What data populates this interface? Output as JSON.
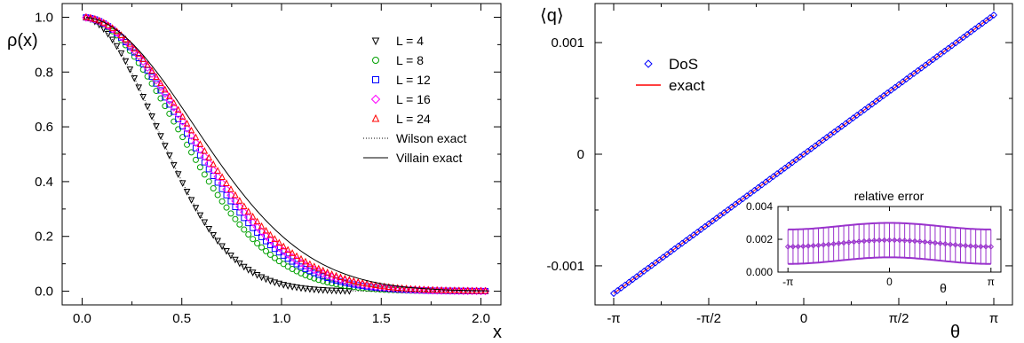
{
  "chart_data": [
    {
      "type": "scatter",
      "ylabel": "ρ(x)",
      "xlabel": "x",
      "xlim": [
        -0.1,
        2.1
      ],
      "ylim": [
        -0.05,
        1.05
      ],
      "xticks": [
        0.0,
        0.5,
        1.0,
        1.5,
        2.0
      ],
      "xtick_labels": [
        "0.0",
        "0.5",
        "1.0",
        "1.5",
        "2.0"
      ],
      "yticks": [
        0.0,
        0.2,
        0.4,
        0.6,
        0.8,
        1.0
      ],
      "ytick_labels": [
        "0.0",
        "0.2",
        "0.4",
        "0.6",
        "0.8",
        "1.0"
      ],
      "legend_position": "top-right",
      "series": [
        {
          "name": "L = 4",
          "marker": "triangle-down",
          "color": "#000000",
          "x_range": [
            0.02,
            1.36
          ],
          "sigma": 0.37
        },
        {
          "name": "L = 8",
          "marker": "circle",
          "color": "#00a000",
          "x_range": [
            0.02,
            2.04
          ],
          "sigma": 0.47
        },
        {
          "name": "L = 12",
          "marker": "square",
          "color": "#0000ff",
          "x_range": [
            0.02,
            2.04
          ],
          "sigma": 0.5
        },
        {
          "name": "L = 16",
          "marker": "diamond",
          "color": "#ff00ff",
          "x_range": [
            0.02,
            2.04
          ],
          "sigma": 0.515
        },
        {
          "name": "L = 24",
          "marker": "triangle-up",
          "color": "#ff0000",
          "x_range": [
            0.02,
            2.04
          ],
          "sigma": 0.53
        },
        {
          "name": "Wilson exact",
          "line": "dotted",
          "color": "#000000",
          "x_range": [
            0.02,
            2.04
          ],
          "sigma": 0.37
        },
        {
          "name": "Villain exact",
          "line": "solid",
          "color": "#000000",
          "x_range": [
            0.02,
            2.04
          ],
          "sigma": 0.56
        }
      ]
    },
    {
      "type": "scatter",
      "ylabel": "⟨q⟩",
      "xlabel": "θ",
      "xlim": [
        -3.45,
        3.45
      ],
      "ylim": [
        -0.00135,
        0.00135
      ],
      "xticks": [
        -3.14159,
        -1.5708,
        0,
        1.5708,
        3.14159
      ],
      "xtick_labels": [
        "-π",
        "-π/2",
        "0",
        "π/2",
        "π"
      ],
      "yticks": [
        -0.001,
        0,
        0.001
      ],
      "ytick_labels": [
        "-0.001",
        "0",
        "0.001"
      ],
      "legend_position": "top-left",
      "series": [
        {
          "name": "DoS",
          "marker": "diamond",
          "color": "#0000ff",
          "x_range": [
            -3.14159,
            3.14159
          ],
          "slope": 0.000397
        },
        {
          "name": "exact",
          "line": "solid",
          "color": "#ff0000",
          "x_range": [
            -3.14159,
            3.14159
          ],
          "slope": 0.000397
        }
      ],
      "inset": {
        "title": "relative error",
        "xlim": [
          -3.45,
          3.45
        ],
        "ylim": [
          0,
          0.004
        ],
        "xticks": [
          -3.14159,
          0,
          3.14159
        ],
        "xtick_labels": [
          "-π",
          "0",
          "π"
        ],
        "xlabel": "θ",
        "yticks": [
          0,
          0.002,
          0.004
        ],
        "ytick_labels": [
          "0.000",
          "0.002",
          "0.004"
        ],
        "color": "#9932cc",
        "mean": {
          "base": 0.00175,
          "amplitude": 0.0002
        },
        "error": 0.00105,
        "n_points": 40
      }
    }
  ]
}
